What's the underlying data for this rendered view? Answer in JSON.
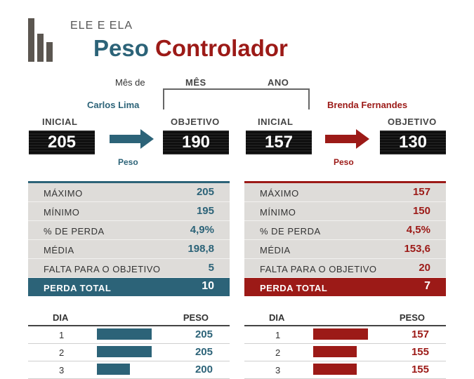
{
  "header": {
    "subtitle": "ELE E ELA",
    "title_part1": "Peso",
    "title_part2": "Controlador",
    "month_label": "Mês de",
    "col_month": "MÊS",
    "col_year": "ANO"
  },
  "colors": {
    "teal": "#2c6378",
    "red": "#9c1a17",
    "panel": "#dedcd9"
  },
  "left": {
    "name": "Carlos Lima",
    "initial_label": "INICIAL",
    "initial_value": "205",
    "goal_label": "OBJETIVO",
    "goal_value": "190",
    "arrow_caption": "Peso",
    "stats": [
      {
        "label": "MÁXIMO",
        "value": "205"
      },
      {
        "label": "MÍNIMO",
        "value": "195"
      },
      {
        "label": "% DE PERDA",
        "value": "4,9%"
      },
      {
        "label": "MÉDIA",
        "value": "198,8"
      },
      {
        "label": "FALTA PARA O OBJETIVO",
        "value": "5"
      }
    ],
    "total": {
      "label": "PERDA TOTAL",
      "value": "10"
    },
    "table_head": {
      "day": "DIA",
      "weight": "PESO"
    },
    "rows": [
      {
        "day": "1",
        "weight": "205",
        "bar": 1.0
      },
      {
        "day": "2",
        "weight": "205",
        "bar": 1.0
      },
      {
        "day": "3",
        "weight": "200",
        "bar": 0.6
      }
    ]
  },
  "right": {
    "name": "Brenda Fernandes",
    "initial_label": "INICIAL",
    "initial_value": "157",
    "goal_label": "OBJETIVO",
    "goal_value": "130",
    "arrow_caption": "Peso",
    "stats": [
      {
        "label": "MÁXIMO",
        "value": "157"
      },
      {
        "label": "MÍNIMO",
        "value": "150"
      },
      {
        "label": "% DE PERDA",
        "value": "4,5%"
      },
      {
        "label": "MÉDIA",
        "value": "153,6"
      },
      {
        "label": "FALTA PARA O OBJETIVO",
        "value": "20"
      }
    ],
    "total": {
      "label": "PERDA TOTAL",
      "value": "7"
    },
    "table_head": {
      "day": "DIA",
      "weight": "PESO"
    },
    "rows": [
      {
        "day": "1",
        "weight": "157",
        "bar": 1.0
      },
      {
        "day": "2",
        "weight": "155",
        "bar": 0.8
      },
      {
        "day": "3",
        "weight": "155",
        "bar": 0.8
      }
    ]
  }
}
